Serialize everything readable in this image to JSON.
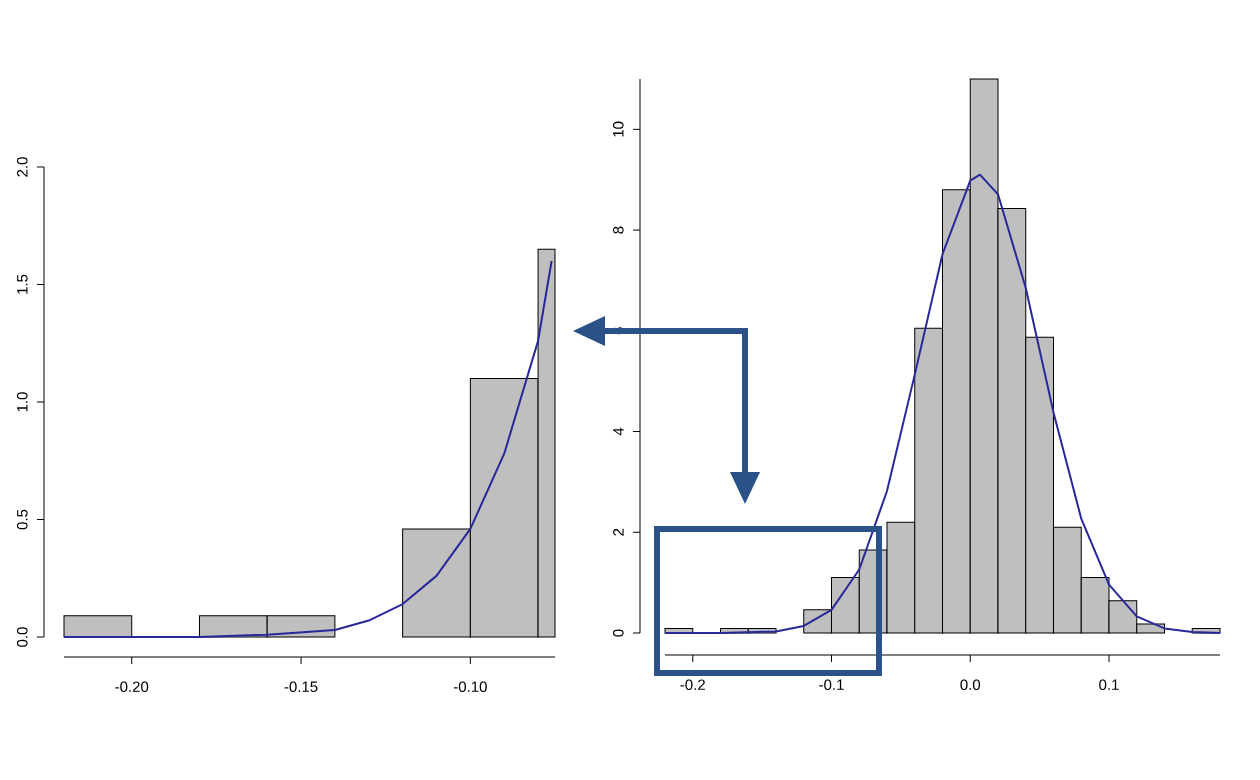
{
  "chart_data": [
    {
      "type": "histogram",
      "bins": [
        -0.22,
        -0.2,
        -0.18,
        -0.16,
        -0.14,
        -0.12,
        -0.1,
        -0.08,
        -0.075
      ],
      "values": [
        0.09,
        0,
        0.09,
        0.09,
        0,
        0.46,
        1.1,
        1.65
      ],
      "color": "#bfbfbf",
      "series": [
        {
          "type": "line",
          "color": "#27289a",
          "x": [
            -0.22,
            -0.2,
            -0.18,
            -0.16,
            -0.14,
            -0.13,
            -0.12,
            -0.11,
            -0.1,
            -0.09,
            -0.08,
            -0.076
          ],
          "values": [
            0,
            0,
            0,
            0.01,
            0.03,
            0.07,
            0.14,
            0.26,
            0.46,
            0.78,
            1.26,
            1.6
          ]
        }
      ],
      "xlim": [
        -0.22,
        -0.075
      ],
      "ylim": [
        0,
        2.0
      ],
      "xticks": [
        {
          "value": -0.2,
          "label": "-0.20"
        },
        {
          "value": -0.15,
          "label": "-0.15"
        },
        {
          "value": -0.1,
          "label": "-0.10"
        }
      ],
      "yticks": [
        {
          "value": 0,
          "label": "0.0"
        },
        {
          "value": 0.5,
          "label": "0.5"
        },
        {
          "value": 1.0,
          "label": "1.0"
        },
        {
          "value": 1.5,
          "label": "1.5"
        },
        {
          "value": 2.0,
          "label": "2.0"
        }
      ]
    },
    {
      "type": "histogram",
      "bins": [
        -0.22,
        -0.2,
        -0.18,
        -0.16,
        -0.14,
        -0.12,
        -0.1,
        -0.08,
        -0.06,
        -0.04,
        -0.02,
        0,
        0.02,
        0.04,
        0.06,
        0.08,
        0.1,
        0.12,
        0.14,
        0.16,
        0.18
      ],
      "values": [
        0.09,
        0,
        0.09,
        0.09,
        0,
        0.46,
        1.1,
        1.65,
        2.2,
        6.05,
        8.8,
        11.0,
        8.43,
        5.87,
        2.1,
        1.1,
        0.64,
        0.18,
        0,
        0.09
      ],
      "color": "#bfbfbf",
      "series": [
        {
          "type": "line",
          "color": "#27289a",
          "x": [
            -0.22,
            -0.18,
            -0.14,
            -0.12,
            -0.1,
            -0.08,
            -0.06,
            -0.04,
            -0.02,
            0,
            0.007,
            0.02,
            0.04,
            0.06,
            0.08,
            0.1,
            0.12,
            0.14,
            0.16,
            0.18
          ],
          "values": [
            0,
            0,
            0.03,
            0.14,
            0.46,
            1.26,
            2.82,
            5.13,
            7.52,
            8.98,
            9.1,
            8.71,
            6.85,
            4.38,
            2.27,
            0.96,
            0.33,
            0.09,
            0.02,
            0
          ]
        }
      ],
      "xlim": [
        -0.22,
        0.18
      ],
      "ylim": [
        0,
        11
      ],
      "xticks": [
        {
          "value": -0.2,
          "label": "-0.2"
        },
        {
          "value": -0.1,
          "label": "-0.1"
        },
        {
          "value": 0,
          "label": "0.0"
        },
        {
          "value": 0.1,
          "label": "0.1"
        }
      ],
      "yticks": [
        0,
        2,
        4,
        6,
        8,
        10
      ]
    }
  ]
}
